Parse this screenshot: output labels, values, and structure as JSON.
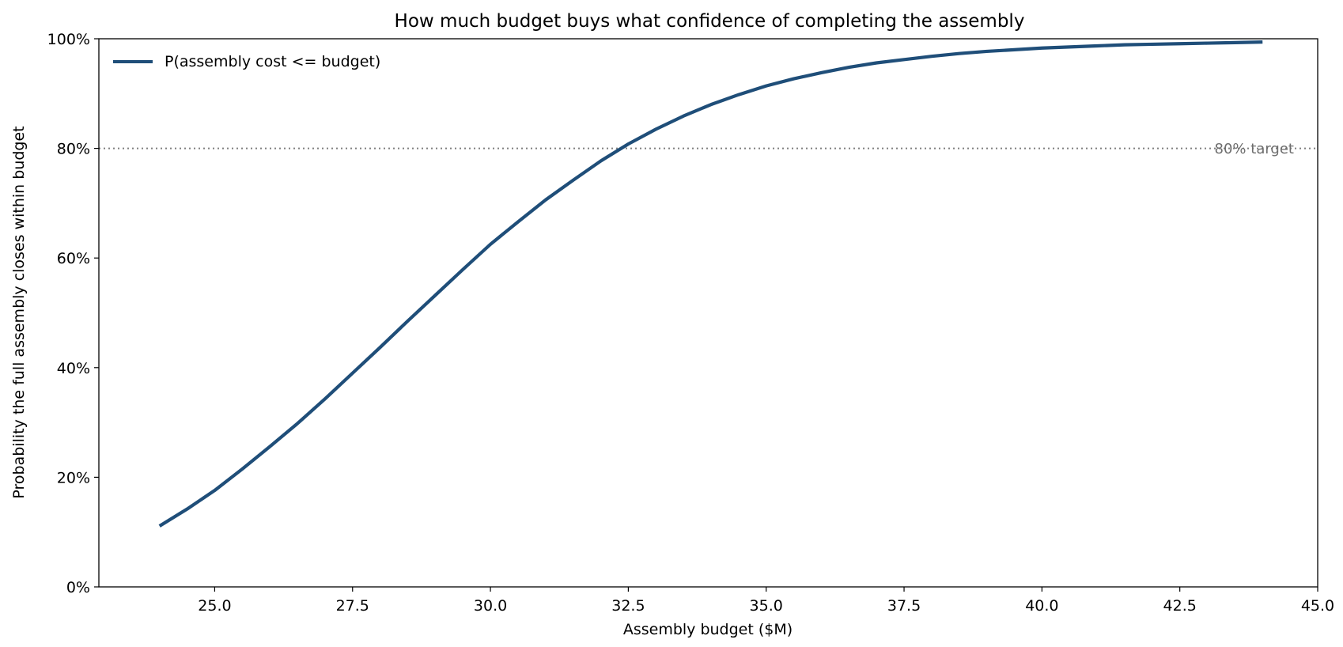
{
  "chart_data": {
    "type": "line",
    "title": "How much budget buys what confidence of completing the assembly",
    "xlabel": "Assembly budget  ($M)",
    "ylabel": "Probability the full assembly closes within budget",
    "xlim": [
      22.9,
      45.0
    ],
    "ylim": [
      0,
      1.0
    ],
    "x_ticks": [
      25.0,
      27.5,
      30.0,
      32.5,
      35.0,
      37.5,
      40.0,
      42.5,
      45.0
    ],
    "x_tick_labels": [
      "25.0",
      "27.5",
      "30.0",
      "32.5",
      "35.0",
      "37.5",
      "40.0",
      "42.5",
      "45.0"
    ],
    "y_ticks": [
      0,
      0.2,
      0.4,
      0.6,
      0.8,
      1.0
    ],
    "y_tick_labels": [
      "0%",
      "20%",
      "40%",
      "60%",
      "80%",
      "100%"
    ],
    "grid": false,
    "legend_position": "top-left",
    "series": [
      {
        "name": "P(assembly cost <= budget)",
        "color": "#1f4e79",
        "x": [
          24.0,
          24.5,
          25.0,
          25.5,
          26.0,
          26.5,
          27.0,
          27.5,
          28.0,
          28.5,
          29.0,
          29.5,
          30.0,
          30.5,
          31.0,
          31.5,
          32.0,
          32.5,
          33.0,
          33.5,
          34.0,
          34.5,
          35.0,
          35.5,
          36.0,
          36.5,
          37.0,
          37.5,
          38.0,
          38.5,
          39.0,
          39.5,
          40.0,
          40.5,
          41.0,
          41.5,
          42.0,
          42.5,
          43.0,
          43.5,
          44.0
        ],
        "y": [
          0.111,
          0.142,
          0.176,
          0.215,
          0.256,
          0.298,
          0.343,
          0.39,
          0.437,
          0.485,
          0.532,
          0.579,
          0.625,
          0.666,
          0.706,
          0.742,
          0.777,
          0.808,
          0.835,
          0.859,
          0.88,
          0.898,
          0.914,
          0.927,
          0.938,
          0.948,
          0.956,
          0.962,
          0.968,
          0.973,
          0.977,
          0.98,
          0.983,
          0.985,
          0.987,
          0.989,
          0.99,
          0.991,
          0.992,
          0.993,
          0.994
        ]
      }
    ],
    "reference_line": {
      "y": 0.8,
      "label": "80% target",
      "color": "#808080",
      "style": "dotted"
    }
  }
}
